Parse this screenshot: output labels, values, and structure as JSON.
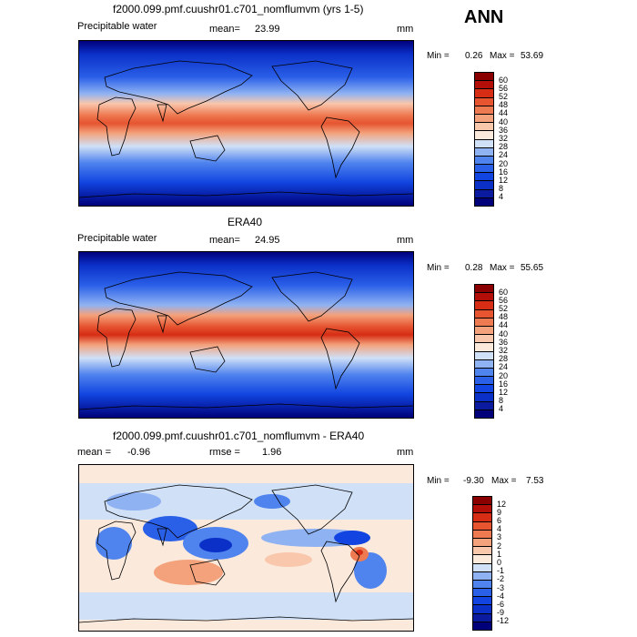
{
  "panels": [
    {
      "title": "f2000.099.pmf.cuushr01.c701_nomflumvm (yrs 1-5)",
      "left_label": "Precipitable water",
      "stat_label": "mean=",
      "stat_value": "23.99",
      "units": "mm",
      "min_label": "Min =",
      "min_value": "0.26",
      "max_label": "Max =",
      "max_value": "53.69",
      "levels": [
        "4",
        "8",
        "12",
        "16",
        "20",
        "24",
        "28",
        "32",
        "36",
        "40",
        "44",
        "48",
        "52",
        "56",
        "60"
      ],
      "colors": [
        "#00007a",
        "#0a1ba0",
        "#0b30c8",
        "#1144e0",
        "#2a5fe8",
        "#4f83ee",
        "#8fb2f2",
        "#cfe0f7",
        "#fbe9dc",
        "#f9c7ac",
        "#f3a27c",
        "#ee7a52",
        "#e65430",
        "#d62d14",
        "#b30e08",
        "#8a0000"
      ]
    },
    {
      "title": "ERA40",
      "left_label": "Precipitable water",
      "stat_label": "mean=",
      "stat_value": "24.95",
      "units": "mm",
      "min_label": "Min =",
      "min_value": "0.28",
      "max_label": "Max =",
      "max_value": "55.65",
      "levels": [
        "4",
        "8",
        "12",
        "16",
        "20",
        "24",
        "28",
        "32",
        "36",
        "40",
        "44",
        "48",
        "52",
        "56",
        "60"
      ],
      "colors": [
        "#00007a",
        "#0a1ba0",
        "#0b30c8",
        "#1144e0",
        "#2a5fe8",
        "#4f83ee",
        "#8fb2f2",
        "#cfe0f7",
        "#fbe9dc",
        "#f9c7ac",
        "#f3a27c",
        "#ee7a52",
        "#e65430",
        "#d62d14",
        "#b30e08",
        "#8a0000"
      ]
    },
    {
      "title": "f2000.099.pmf.cuushr01.c701_nomflumvm - ERA40",
      "left_label": "mean =",
      "left_value": "-0.96",
      "stat_label": "rmse =",
      "stat_value": "1.96",
      "units": "mm",
      "min_label": "Min =",
      "min_value": "-9.30",
      "max_label": "Max =",
      "max_value": "7.53",
      "levels": [
        "-12",
        "-9",
        "-6",
        "-4",
        "-3",
        "-2",
        "-1",
        "0",
        "1",
        "2",
        "3",
        "4",
        "6",
        "9",
        "12"
      ],
      "colors": [
        "#00007a",
        "#0a1ba0",
        "#0b30c8",
        "#1144e0",
        "#2a5fe8",
        "#4f83ee",
        "#8fb2f2",
        "#cfe0f7",
        "#fbe9dc",
        "#f9c7ac",
        "#f3a27c",
        "#ee7a52",
        "#e65430",
        "#d62d14",
        "#b30e08",
        "#8a0000"
      ]
    }
  ],
  "season": "ANN"
}
